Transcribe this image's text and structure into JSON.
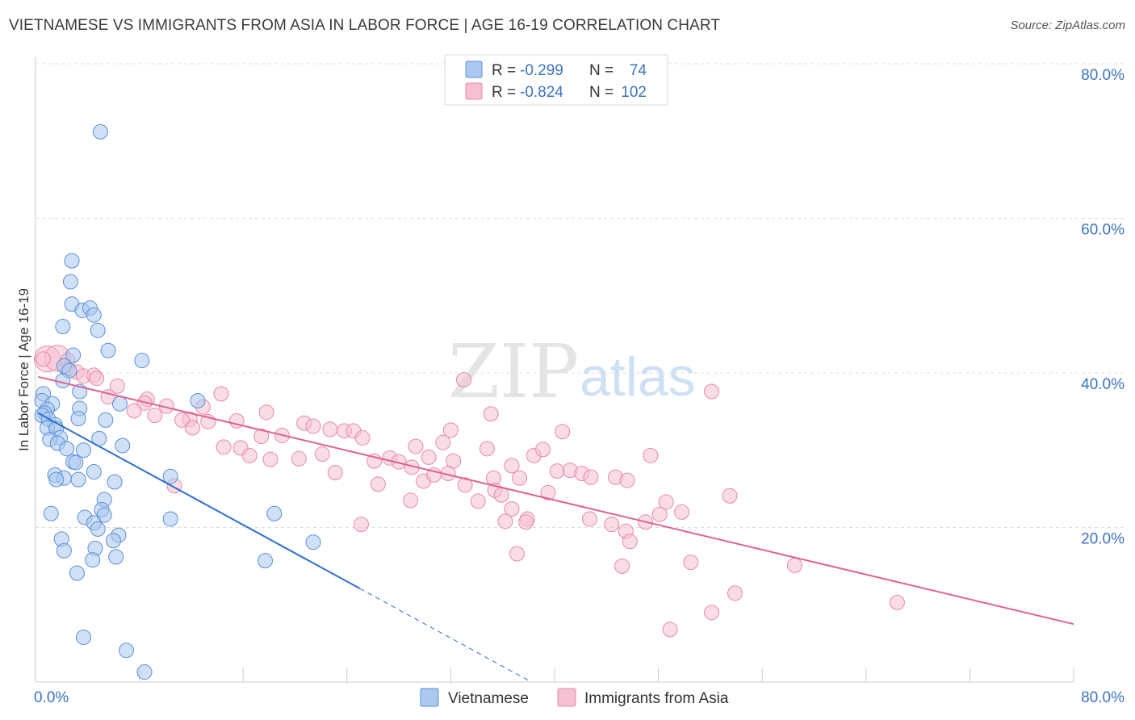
{
  "title": "VIETNAMESE VS IMMIGRANTS FROM ASIA IN LABOR FORCE | AGE 16-19 CORRELATION CHART",
  "source": "Source: ZipAtlas.com",
  "watermark": {
    "zip": "ZIP",
    "atlas": "atlas"
  },
  "colors": {
    "blue_fill": "#aac8f0",
    "blue_stroke": "#5b8fd6",
    "blue_line": "#2f6fd0",
    "pink_fill": "#f6c0d0",
    "pink_stroke": "#e68aa8",
    "pink_line": "#e0628e",
    "tick_text": "#3b73c4",
    "grid": "#dddddd"
  },
  "legend": {
    "rows": [
      {
        "r_label": "R =",
        "r_value": "-0.299",
        "n_label": "N =",
        "n_value": "74"
      },
      {
        "r_label": "R =",
        "r_value": "-0.824",
        "n_label": "N =",
        "n_value": "102"
      }
    ]
  },
  "chart_data": {
    "type": "scatter",
    "title": "VIETNAMESE VS IMMIGRANTS FROM ASIA IN LABOR FORCE | AGE 16-19 CORRELATION CHART",
    "xlabel": "",
    "ylabel": "In Labor Force | Age 16-19",
    "xlim": [
      0,
      80
    ],
    "ylim": [
      0,
      80
    ],
    "x_tick_labels": [
      "0.0%",
      "80.0%"
    ],
    "y_ticks": [
      20,
      40,
      60,
      80
    ],
    "y_tick_labels": [
      "20.0%",
      "40.0%",
      "60.0%",
      "80.0%"
    ],
    "grid": "horizontal dashed",
    "legend_position": "top-center",
    "series": [
      {
        "name": "Vietnamese",
        "r": -0.299,
        "n": 74,
        "trend": {
          "x0": 0.2,
          "y0": 34.8,
          "x1": 25.0,
          "y1": 12.1,
          "dash_to_x": 38.0
        },
        "points": [
          [
            5.0,
            71.2
          ],
          [
            2.8,
            54.5
          ],
          [
            2.7,
            51.8
          ],
          [
            2.8,
            48.9
          ],
          [
            3.6,
            48.1
          ],
          [
            4.2,
            48.4
          ],
          [
            4.5,
            47.5
          ],
          [
            2.1,
            46.0
          ],
          [
            4.8,
            45.5
          ],
          [
            5.6,
            42.9
          ],
          [
            2.9,
            42.3
          ],
          [
            8.2,
            41.6
          ],
          [
            2.2,
            40.9
          ],
          [
            2.6,
            40.3
          ],
          [
            2.1,
            39.0
          ],
          [
            0.6,
            37.3
          ],
          [
            3.4,
            37.6
          ],
          [
            0.5,
            36.4
          ],
          [
            1.3,
            36.0
          ],
          [
            6.5,
            36.0
          ],
          [
            12.5,
            36.4
          ],
          [
            0.9,
            35.3
          ],
          [
            0.7,
            34.8
          ],
          [
            3.4,
            35.4
          ],
          [
            0.5,
            34.5
          ],
          [
            1.0,
            34.0
          ],
          [
            3.3,
            34.1
          ],
          [
            5.4,
            33.9
          ],
          [
            1.5,
            33.3
          ],
          [
            0.9,
            32.9
          ],
          [
            1.6,
            32.8
          ],
          [
            1.9,
            31.6
          ],
          [
            1.1,
            31.4
          ],
          [
            4.9,
            31.5
          ],
          [
            1.7,
            30.9
          ],
          [
            6.7,
            30.6
          ],
          [
            2.4,
            30.2
          ],
          [
            3.7,
            30.0
          ],
          [
            2.9,
            28.5
          ],
          [
            3.1,
            28.4
          ],
          [
            4.5,
            27.2
          ],
          [
            1.5,
            26.8
          ],
          [
            2.2,
            26.4
          ],
          [
            1.6,
            26.2
          ],
          [
            3.3,
            26.2
          ],
          [
            10.4,
            26.6
          ],
          [
            6.1,
            25.9
          ],
          [
            5.3,
            23.6
          ],
          [
            5.1,
            22.3
          ],
          [
            5.3,
            21.6
          ],
          [
            1.2,
            21.8
          ],
          [
            18.4,
            21.8
          ],
          [
            3.8,
            21.3
          ],
          [
            4.5,
            20.6
          ],
          [
            10.4,
            21.1
          ],
          [
            4.8,
            19.8
          ],
          [
            6.4,
            19.0
          ],
          [
            2.0,
            18.5
          ],
          [
            6.0,
            18.3
          ],
          [
            21.4,
            18.1
          ],
          [
            2.2,
            17.0
          ],
          [
            4.6,
            17.3
          ],
          [
            6.2,
            16.2
          ],
          [
            4.4,
            15.8
          ],
          [
            17.7,
            15.7
          ],
          [
            3.2,
            14.1
          ],
          [
            3.7,
            5.8
          ],
          [
            7.0,
            4.1
          ],
          [
            8.4,
            1.3
          ]
        ]
      },
      {
        "name": "Immigrants from Asia",
        "r": -0.824,
        "n": 102,
        "trend": {
          "x0": 0.2,
          "y0": 39.5,
          "x1": 80.0,
          "y1": 7.5
        },
        "points": [
          [
            0.9,
            41.8
          ],
          [
            1.7,
            41.9
          ],
          [
            2.5,
            41.6
          ],
          [
            2.4,
            40.5
          ],
          [
            3.2,
            40.1
          ],
          [
            3.7,
            39.6
          ],
          [
            4.5,
            39.7
          ],
          [
            4.7,
            39.3
          ],
          [
            6.3,
            38.3
          ],
          [
            5.6,
            36.9
          ],
          [
            14.3,
            37.3
          ],
          [
            12.9,
            35.6
          ],
          [
            8.6,
            36.6
          ],
          [
            8.4,
            36.1
          ],
          [
            10.1,
            35.7
          ],
          [
            7.6,
            35.1
          ],
          [
            9.2,
            34.5
          ],
          [
            11.9,
            34.0
          ],
          [
            11.3,
            33.9
          ],
          [
            13.3,
            33.7
          ],
          [
            15.5,
            33.8
          ],
          [
            12.1,
            32.9
          ],
          [
            17.8,
            34.9
          ],
          [
            20.7,
            33.5
          ],
          [
            21.4,
            33.1
          ],
          [
            22.7,
            32.7
          ],
          [
            23.8,
            32.5
          ],
          [
            24.5,
            32.5
          ],
          [
            17.4,
            31.8
          ],
          [
            19.0,
            31.9
          ],
          [
            25.2,
            31.6
          ],
          [
            32.0,
            32.6
          ],
          [
            30.3,
            29.1
          ],
          [
            29.3,
            30.5
          ],
          [
            32.2,
            28.6
          ],
          [
            35.1,
            34.7
          ],
          [
            34.8,
            30.2
          ],
          [
            38.4,
            29.3
          ],
          [
            36.7,
            28.0
          ],
          [
            31.4,
            31.0
          ],
          [
            14.5,
            30.4
          ],
          [
            15.8,
            30.3
          ],
          [
            16.5,
            29.3
          ],
          [
            18.1,
            28.8
          ],
          [
            20.3,
            28.9
          ],
          [
            22.1,
            29.5
          ],
          [
            26.1,
            28.6
          ],
          [
            27.3,
            29.0
          ],
          [
            29.0,
            27.8
          ],
          [
            28.0,
            28.5
          ],
          [
            29.9,
            26.0
          ],
          [
            30.7,
            26.8
          ],
          [
            31.8,
            27.0
          ],
          [
            35.3,
            26.4
          ],
          [
            37.3,
            26.4
          ],
          [
            40.2,
            27.3
          ],
          [
            41.2,
            27.4
          ],
          [
            42.1,
            27.0
          ],
          [
            42.8,
            26.5
          ],
          [
            44.7,
            26.5
          ],
          [
            45.6,
            26.1
          ],
          [
            47.4,
            29.3
          ],
          [
            23.1,
            27.1
          ],
          [
            26.4,
            25.6
          ],
          [
            33.1,
            25.5
          ],
          [
            35.4,
            24.8
          ],
          [
            39.5,
            24.5
          ],
          [
            40.6,
            32.4
          ],
          [
            33.0,
            39.1
          ],
          [
            52.1,
            37.6
          ],
          [
            39.1,
            30.1
          ],
          [
            28.9,
            23.5
          ],
          [
            34.1,
            23.4
          ],
          [
            36.7,
            22.4
          ],
          [
            35.9,
            24.2
          ],
          [
            53.5,
            24.1
          ],
          [
            48.6,
            23.3
          ],
          [
            48.1,
            21.7
          ],
          [
            49.8,
            22.0
          ],
          [
            37.9,
            21.1
          ],
          [
            36.2,
            20.8
          ],
          [
            37.8,
            20.7
          ],
          [
            42.7,
            21.1
          ],
          [
            44.4,
            20.4
          ],
          [
            47.0,
            20.7
          ],
          [
            25.1,
            20.4
          ],
          [
            45.5,
            19.5
          ],
          [
            45.8,
            18.2
          ],
          [
            37.1,
            16.6
          ],
          [
            50.5,
            15.5
          ],
          [
            45.2,
            15.0
          ],
          [
            58.5,
            15.1
          ],
          [
            53.9,
            11.5
          ],
          [
            52.1,
            9.0
          ],
          [
            66.4,
            10.3
          ],
          [
            48.9,
            6.8
          ],
          [
            10.7,
            25.4
          ],
          [
            0.6,
            41.8
          ]
        ]
      }
    ]
  },
  "bottom_legend": {
    "items": [
      "Vietnamese",
      "Immigrants from Asia"
    ]
  }
}
